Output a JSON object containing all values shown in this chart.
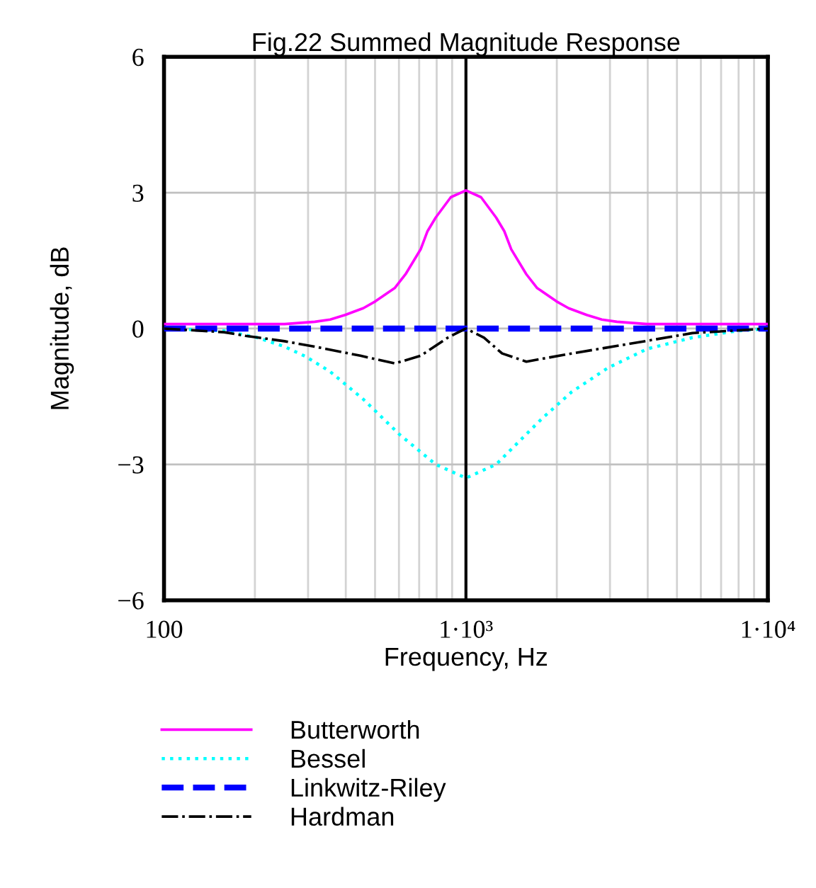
{
  "chart_data": {
    "type": "line",
    "title": "Fig.22 Summed Magnitude Response",
    "xlabel": "Frequency, Hz",
    "ylabel": "Magnitude, dB",
    "log": "x",
    "xlim": [
      100,
      10000
    ],
    "xticks": [
      100,
      {
        "value": 1000,
        "label": "1·10³"
      },
      {
        "value": 10000,
        "label": "1·10⁴"
      }
    ],
    "ylim": [
      -6,
      6
    ],
    "yticks": [
      {
        "value": -6,
        "label": "−6"
      },
      {
        "value": -3,
        "label": "−3"
      },
      0,
      3,
      6
    ],
    "grid": true,
    "legend": "bottom",
    "ref_lines": [
      {
        "axis": "x",
        "value": 1000,
        "color": "#000000",
        "line_style": "solid"
      }
    ],
    "series": [
      {
        "name": "Butterworth",
        "color": "#ff00ff",
        "line_style": "solid",
        "x": [
          100,
          251,
          316,
          355,
          398,
          457,
          501,
          582,
          631,
          708,
          746,
          794,
          891,
          1000,
          1122,
          1259,
          1340,
          1413,
          1585,
          1718,
          1995,
          2188,
          2512,
          2818,
          3162,
          3981,
          10000
        ],
        "values": [
          0.1,
          0.1,
          0.15,
          0.2,
          0.3,
          0.45,
          0.6,
          0.9,
          1.2,
          1.75,
          2.15,
          2.45,
          2.9,
          3.05,
          2.9,
          2.45,
          2.15,
          1.75,
          1.2,
          0.9,
          0.6,
          0.45,
          0.3,
          0.2,
          0.15,
          0.1,
          0.1
        ]
      },
      {
        "name": "Bessel",
        "color": "#00ffff",
        "line_style": "dotted",
        "x": [
          100,
          158,
          204,
          251,
          295,
          355,
          457,
          603,
          794,
          1000,
          1259,
          1778,
          2239,
          2951,
          3981,
          5623,
          7943,
          10000
        ],
        "values": [
          0,
          -0.05,
          -0.2,
          -0.4,
          -0.62,
          -0.95,
          -1.56,
          -2.34,
          -3.0,
          -3.3,
          -3.0,
          -2.0,
          -1.4,
          -0.87,
          -0.45,
          -0.2,
          -0.05,
          0
        ]
      },
      {
        "name": "Linkwitz-Riley",
        "color": "#0000ff",
        "line_style": "dashed",
        "x": [
          100,
          1000,
          10000
        ],
        "values": [
          0,
          0,
          0
        ]
      },
      {
        "name": "Hardman",
        "color": "#000000",
        "line_style": "dashdot",
        "x": [
          100,
          158,
          186,
          251,
          316,
          447,
          582,
          708,
          871,
          1000,
          1148,
          1318,
          1585,
          2239,
          3388,
          5623,
          10000
        ],
        "values": [
          0,
          -0.08,
          -0.16,
          -0.28,
          -0.4,
          -0.6,
          -0.77,
          -0.6,
          -0.2,
          0,
          -0.2,
          -0.55,
          -0.73,
          -0.55,
          -0.35,
          -0.1,
          0
        ]
      }
    ]
  }
}
